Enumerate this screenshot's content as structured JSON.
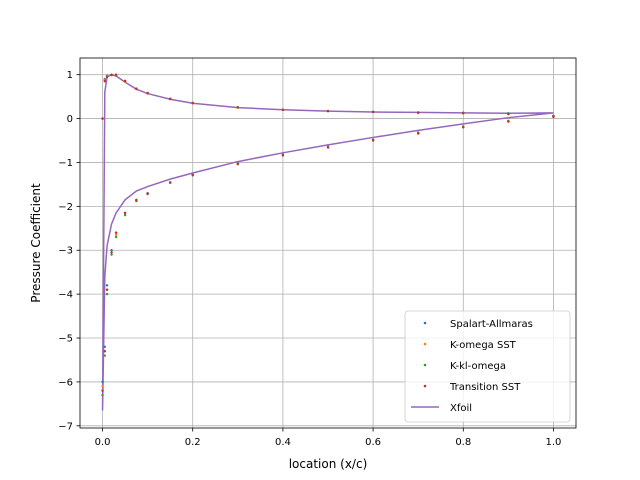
{
  "chart_data": {
    "type": "scatter",
    "title": "",
    "xlabel": "location (x/c)",
    "ylabel": "Pressure Coefficient",
    "xlim": [
      -0.05,
      1.05
    ],
    "ylim": [
      -7.05,
      1.38
    ],
    "xticks": [
      0.0,
      0.2,
      0.4,
      0.6,
      0.8,
      1.0
    ],
    "xtick_labels": [
      "0.0",
      "0.2",
      "0.4",
      "0.6",
      "0.8",
      "1.0"
    ],
    "yticks": [
      1,
      0,
      -1,
      -2,
      -3,
      -4,
      -5,
      -6,
      -7
    ],
    "ytick_labels": [
      "1",
      "0",
      "−1",
      "−2",
      "−3",
      "−4",
      "−5",
      "−6",
      "−7"
    ],
    "grid": true,
    "legend_position": "bottom-right",
    "x": [
      0.0,
      0.005,
      0.01,
      0.02,
      0.03,
      0.05,
      0.075,
      0.1,
      0.15,
      0.2,
      0.3,
      0.4,
      0.5,
      0.6,
      0.7,
      0.8,
      0.9,
      1.0
    ],
    "series": [
      {
        "name": "Spalart-Allmaras",
        "kind": "scatter",
        "color": "#1f77b4",
        "upper": [
          0.0,
          0.9,
          0.98,
          1.0,
          0.98,
          0.85,
          0.68,
          0.58,
          0.45,
          0.35,
          0.26,
          0.2,
          0.17,
          0.15,
          0.14,
          0.13,
          0.12,
          0.06
        ],
        "lower": [
          -6.0,
          -5.2,
          -3.8,
          -3.0,
          -2.6,
          -2.15,
          -1.85,
          -1.7,
          -1.45,
          -1.28,
          -1.02,
          -0.82,
          -0.64,
          -0.48,
          -0.32,
          -0.18,
          -0.05,
          0.06
        ]
      },
      {
        "name": "K-omega SST",
        "kind": "scatter",
        "color": "#ff7f0e",
        "upper": [
          0.0,
          0.88,
          0.97,
          1.0,
          0.98,
          0.84,
          0.67,
          0.57,
          0.44,
          0.35,
          0.25,
          0.2,
          0.17,
          0.15,
          0.14,
          0.12,
          0.11,
          0.05
        ],
        "lower": [
          -6.1,
          -5.3,
          -3.9,
          -3.05,
          -2.65,
          -2.18,
          -1.87,
          -1.72,
          -1.46,
          -1.29,
          -1.03,
          -0.83,
          -0.65,
          -0.49,
          -0.33,
          -0.19,
          -0.06,
          0.05
        ]
      },
      {
        "name": "K-kl-omega",
        "kind": "scatter",
        "color": "#2ca02c",
        "upper": [
          0.0,
          0.86,
          0.96,
          1.0,
          0.99,
          0.85,
          0.68,
          0.58,
          0.45,
          0.36,
          0.26,
          0.2,
          0.17,
          0.15,
          0.14,
          0.13,
          0.12,
          0.06
        ],
        "lower": [
          -6.3,
          -5.4,
          -4.0,
          -3.1,
          -2.7,
          -2.2,
          -1.88,
          -1.72,
          -1.46,
          -1.29,
          -1.03,
          -0.83,
          -0.65,
          -0.49,
          -0.33,
          -0.19,
          -0.06,
          0.06
        ]
      },
      {
        "name": "Transition SST",
        "kind": "scatter",
        "color": "#d62728",
        "upper": [
          0.0,
          0.85,
          0.95,
          0.99,
          1.0,
          0.86,
          0.68,
          0.58,
          0.45,
          0.35,
          0.25,
          0.2,
          0.17,
          0.15,
          0.13,
          0.12,
          0.1,
          0.04
        ],
        "lower": [
          -6.2,
          -5.3,
          -3.9,
          -3.05,
          -2.6,
          -2.15,
          -1.86,
          -1.71,
          -1.46,
          -1.29,
          -1.04,
          -0.84,
          -0.66,
          -0.5,
          -0.34,
          -0.2,
          -0.07,
          0.04
        ]
      },
      {
        "name": "Xfoil",
        "kind": "line",
        "color": "#9467bd",
        "upper": [
          -6.65,
          0.6,
          0.95,
          1.0,
          0.97,
          0.83,
          0.67,
          0.57,
          0.44,
          0.35,
          0.25,
          0.2,
          0.17,
          0.15,
          0.14,
          0.13,
          0.12,
          0.13
        ],
        "lower": [
          -6.65,
          -3.6,
          -2.9,
          -2.4,
          -2.15,
          -1.85,
          -1.65,
          -1.55,
          -1.38,
          -1.24,
          -0.98,
          -0.78,
          -0.6,
          -0.43,
          -0.27,
          -0.12,
          0.02,
          0.13
        ]
      }
    ]
  }
}
